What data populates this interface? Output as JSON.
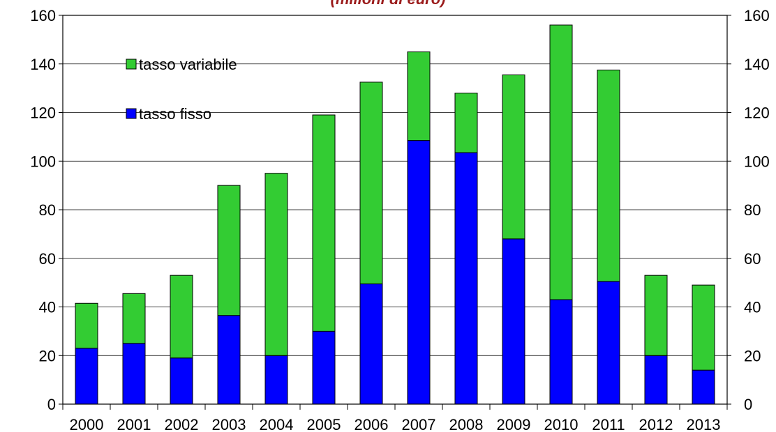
{
  "chart_data": {
    "type": "bar",
    "stacked": true,
    "subtitle": "(milioni di euro)",
    "categories": [
      "2000",
      "2001",
      "2002",
      "2003",
      "2004",
      "2005",
      "2006",
      "2007",
      "2008",
      "2009",
      "2010",
      "2011",
      "2012",
      "2013"
    ],
    "series": [
      {
        "name": "tasso fisso",
        "color": "#0000ff",
        "values": [
          23,
          25,
          19,
          36.5,
          20,
          30,
          49.5,
          108.5,
          103.5,
          68,
          43,
          50.5,
          20,
          14
        ]
      },
      {
        "name": "tasso variabile",
        "color": "#33cc33",
        "values": [
          18.5,
          20.5,
          34,
          53.5,
          75,
          89,
          83,
          36.5,
          24.5,
          67.5,
          113,
          87,
          33,
          35
        ]
      }
    ],
    "ylim": [
      0,
      160
    ],
    "yticks": [
      "0",
      "20",
      "40",
      "60",
      "80",
      "100",
      "120",
      "140",
      "160"
    ],
    "secondary_yaxis": true,
    "grid": "horizontal",
    "legend": {
      "placement": "top-left",
      "items": [
        "tasso variabile",
        "tasso fisso"
      ]
    }
  }
}
